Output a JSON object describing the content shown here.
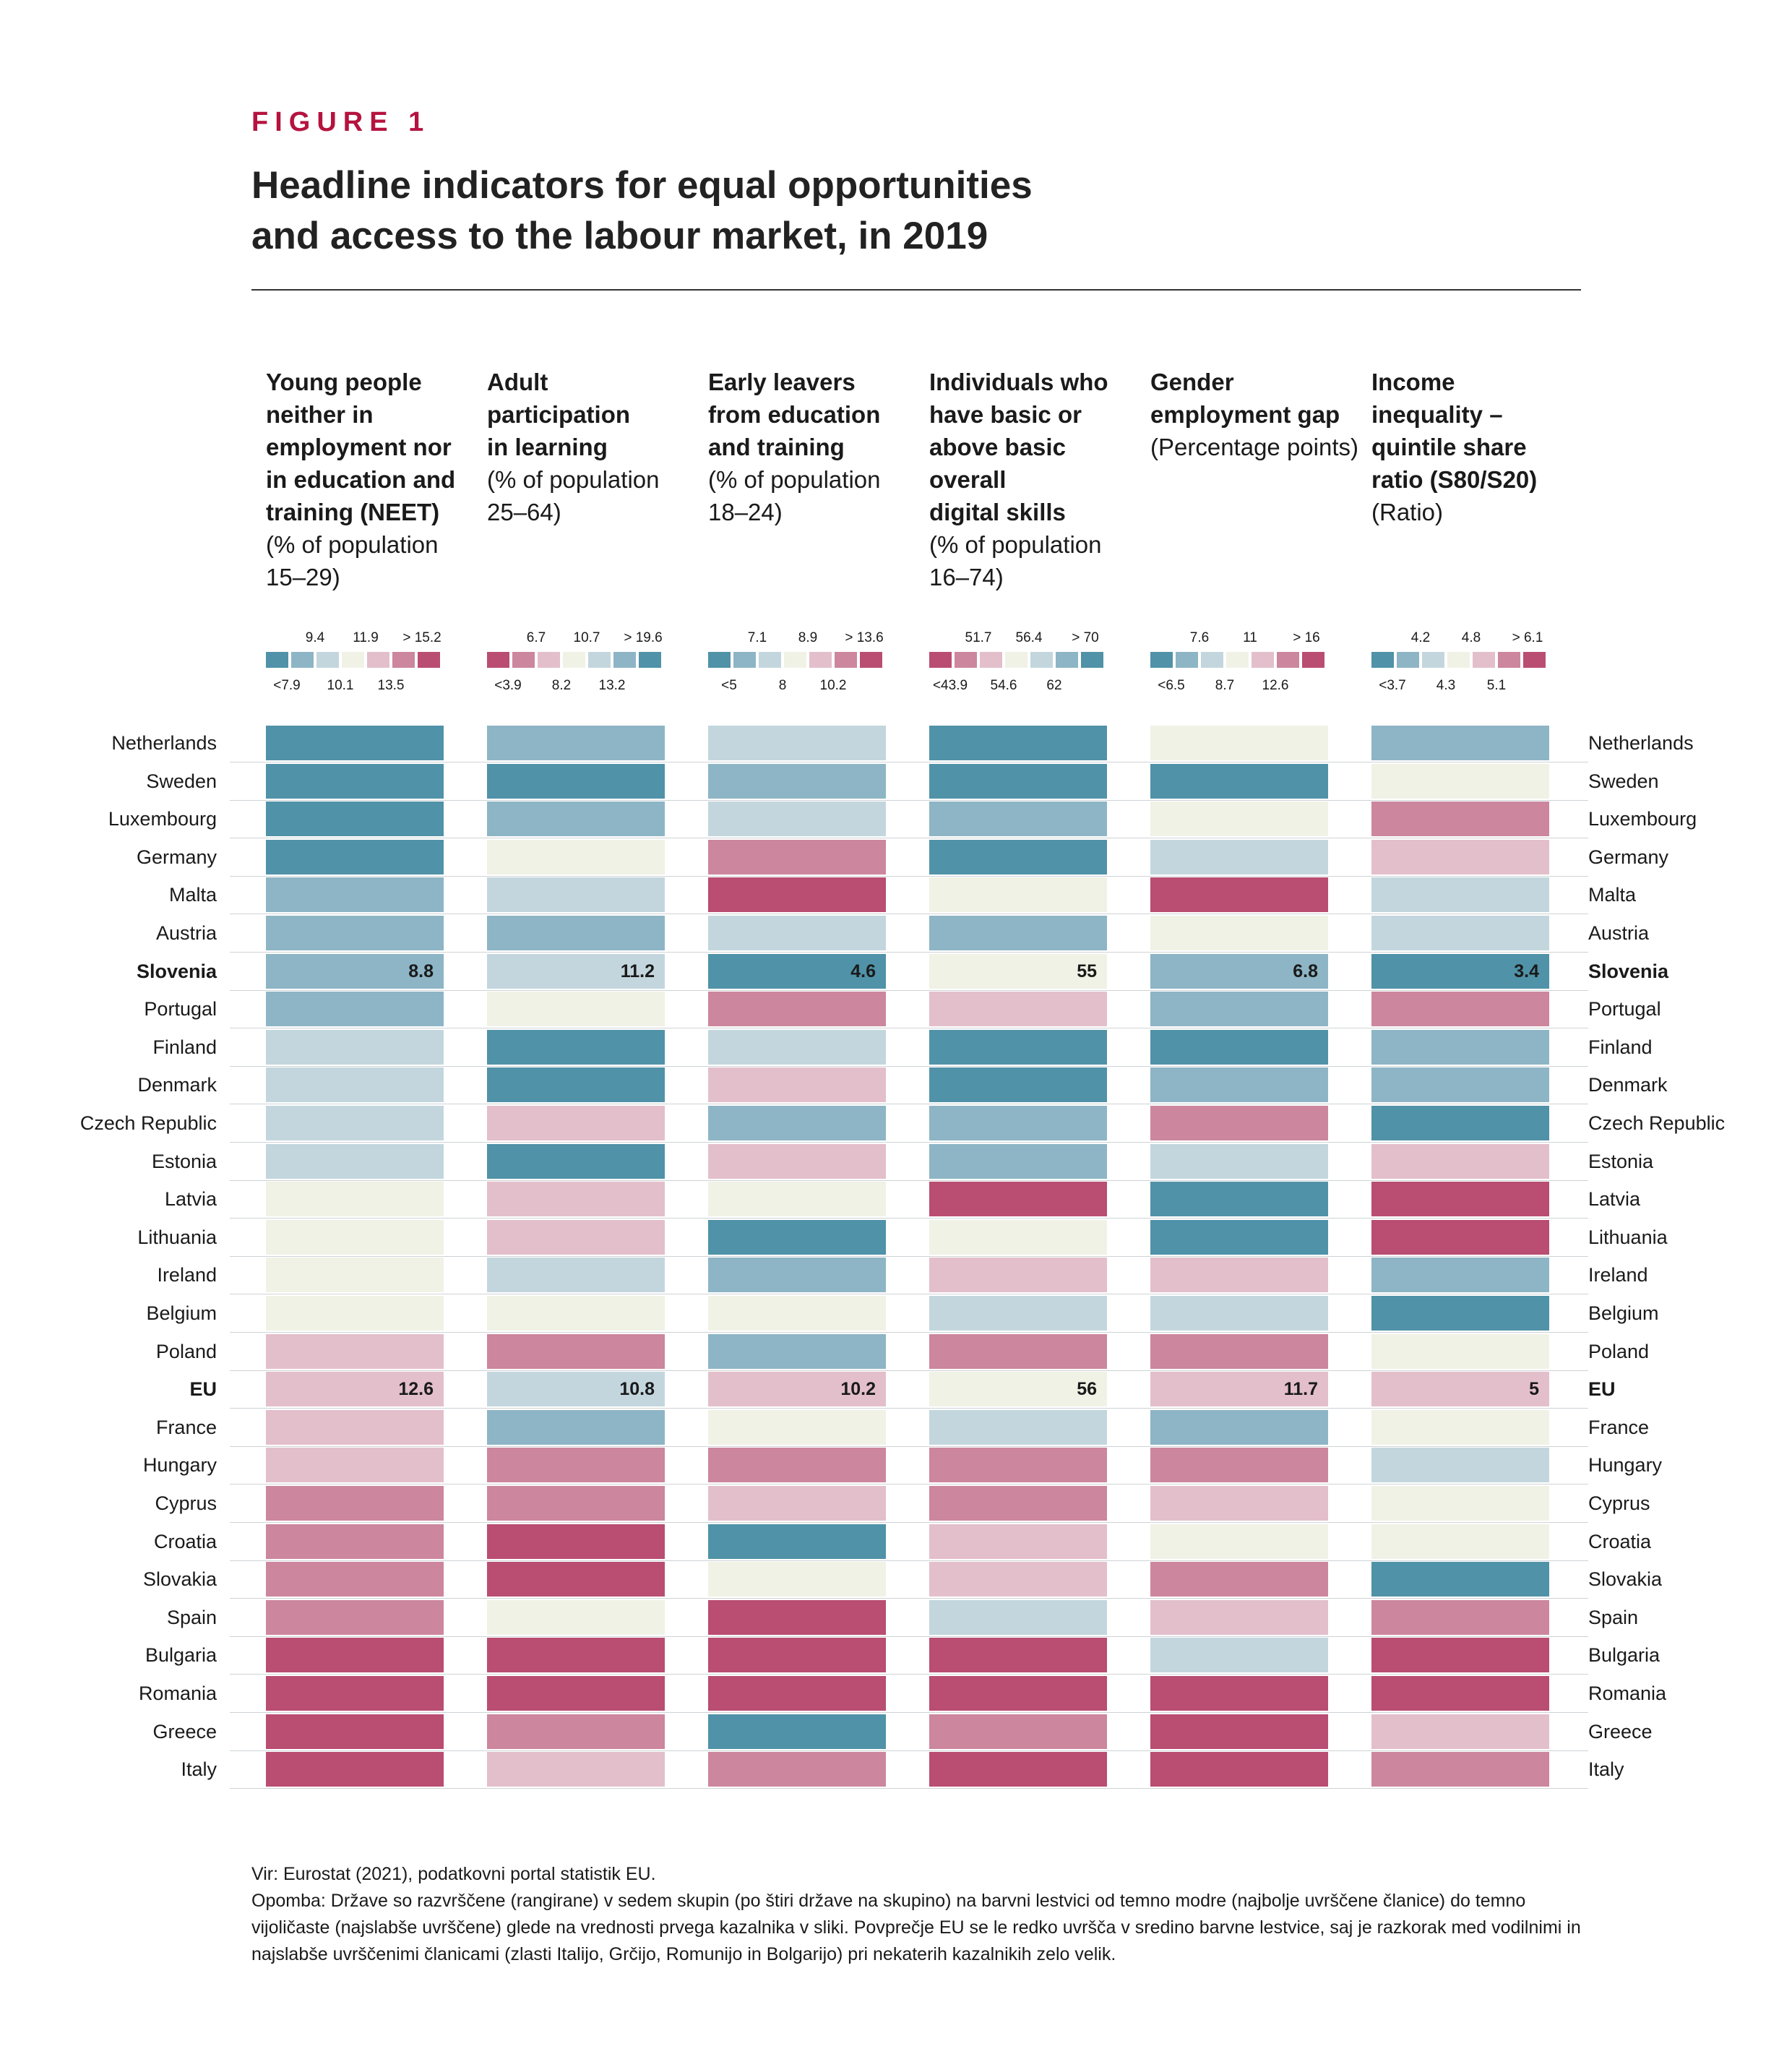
{
  "figure_label": "FIGURE 1",
  "title_line1": "Headline indicators for equal opportunities",
  "title_line2": "and access to the labour market, in 2019",
  "colors": {
    "scale": [
      "#5092a8",
      "#8db5c5",
      "#c3d6de",
      "#f0f2e6",
      "#e3bfcb",
      "#cc869d",
      "#b94d72"
    ]
  },
  "chart_data": {
    "type": "heatmap",
    "countries": [
      "Netherlands",
      "Sweden",
      "Luxembourg",
      "Germany",
      "Malta",
      "Austria",
      "Slovenia",
      "Portugal",
      "Finland",
      "Denmark",
      "Czech Republic",
      "Estonia",
      "Latvia",
      "Lithuania",
      "Ireland",
      "Belgium",
      "Poland",
      "EU",
      "France",
      "Hungary",
      "Cyprus",
      "Croatia",
      "Slovakia",
      "Spain",
      "Bulgaria",
      "Romania",
      "Greece",
      "Italy"
    ],
    "bold_rows": [
      "Slovenia",
      "EU"
    ],
    "indicators": [
      {
        "title": "Young people neither in employment nor in education and training (NEET)",
        "title_lines": [
          "Young people",
          "neither in",
          "employment nor",
          "in education and",
          "training (NEET)"
        ],
        "subtitle_lines": [
          "(% of population",
          "15–29)"
        ],
        "legend_top": [
          "9.4",
          "11.9",
          "> 15.2"
        ],
        "legend_bottom": [
          "<7.9",
          "10.1",
          "13.5"
        ],
        "legend_direction": "blue-to-red",
        "levels": [
          0,
          0,
          0,
          0,
          1,
          1,
          1,
          1,
          2,
          2,
          2,
          2,
          3,
          3,
          3,
          3,
          4,
          4,
          4,
          4,
          5,
          5,
          5,
          5,
          6,
          6,
          6,
          6
        ],
        "labels": {
          "Slovenia": "8.8",
          "EU": "12.6"
        }
      },
      {
        "title": "Adult participation in learning",
        "title_lines": [
          "Adult participation",
          "in learning"
        ],
        "subtitle_lines": [
          "(% of population",
          "25–64)"
        ],
        "legend_top": [
          "6.7",
          "10.7",
          "> 19.6"
        ],
        "legend_bottom": [
          "<3.9",
          "8.2",
          "13.2"
        ],
        "legend_direction": "red-to-blue",
        "levels": [
          1,
          0,
          1,
          3,
          2,
          1,
          2,
          3,
          0,
          0,
          4,
          0,
          4,
          4,
          2,
          3,
          5,
          2,
          1,
          5,
          5,
          6,
          6,
          3,
          6,
          6,
          5,
          4
        ],
        "labels": {
          "Slovenia": "11.2",
          "EU": "10.8"
        }
      },
      {
        "title": "Early leavers from education and training",
        "title_lines": [
          "Early leavers",
          "from education",
          "and training"
        ],
        "subtitle_lines": [
          "(% of population",
          "18–24)"
        ],
        "legend_top": [
          "7.1",
          "8.9",
          "> 13.6"
        ],
        "legend_bottom": [
          "<5",
          "8",
          "10.2"
        ],
        "legend_direction": "blue-to-red",
        "levels": [
          2,
          1,
          2,
          5,
          6,
          2,
          0,
          5,
          2,
          4,
          1,
          4,
          3,
          0,
          1,
          3,
          1,
          4,
          3,
          5,
          4,
          0,
          3,
          6,
          6,
          6,
          0,
          5
        ],
        "labels": {
          "Slovenia": "4.6",
          "EU": "10.2"
        }
      },
      {
        "title": "Individuals who have basic or above basic overall digital skills",
        "title_lines": [
          "Individuals who",
          "have basic or",
          "above basic overall",
          "digital skills"
        ],
        "subtitle_lines": [
          "(% of population",
          "16–74)"
        ],
        "legend_top": [
          "51.7",
          "56.4",
          "> 70"
        ],
        "legend_bottom": [
          "<43.9",
          "54.6",
          "62"
        ],
        "legend_direction": "red-to-blue",
        "levels": [
          0,
          0,
          1,
          0,
          3,
          1,
          3,
          4,
          0,
          0,
          1,
          1,
          6,
          3,
          4,
          2,
          5,
          3,
          2,
          5,
          5,
          4,
          4,
          2,
          6,
          6,
          5,
          6
        ],
        "labels": {
          "Slovenia": "55",
          "EU": "56"
        }
      },
      {
        "title": "Gender employment gap",
        "title_lines": [
          "Gender",
          "employment gap"
        ],
        "subtitle_lines": [
          "(Percentage points)"
        ],
        "legend_top": [
          "7.6",
          "11",
          "> 16"
        ],
        "legend_bottom": [
          "<6.5",
          "8.7",
          "12.6"
        ],
        "legend_direction": "blue-to-red",
        "levels": [
          3,
          0,
          3,
          2,
          6,
          3,
          1,
          1,
          0,
          1,
          5,
          2,
          0,
          0,
          4,
          2,
          5,
          4,
          1,
          5,
          4,
          3,
          5,
          4,
          2,
          6,
          6,
          6
        ],
        "labels": {
          "Slovenia": "6.8",
          "EU": "11.7"
        }
      },
      {
        "title": "Income inequality – quintile share ratio (S80/S20)",
        "title_lines": [
          "Income",
          "inequality –",
          "quintile share",
          "ratio (S80/S20)"
        ],
        "subtitle_lines": [
          "(Ratio)"
        ],
        "legend_top": [
          "4.2",
          "4.8",
          "> 6.1"
        ],
        "legend_bottom": [
          "<3.7",
          "4.3",
          "5.1"
        ],
        "legend_direction": "blue-to-red",
        "levels": [
          1,
          3,
          5,
          4,
          2,
          2,
          0,
          5,
          1,
          1,
          0,
          4,
          6,
          6,
          1,
          0,
          3,
          4,
          3,
          2,
          3,
          3,
          0,
          5,
          6,
          6,
          4,
          5
        ],
        "labels": {
          "Slovenia": "3.4",
          "EU": "5"
        }
      }
    ]
  },
  "footnote_source": "Vir: Eurostat (2021), podatkovni portal statistik EU.",
  "footnote_note": "Opomba: Države so razvrščene (rangirane) v sedem skupin (po štiri države na skupino) na barvni lestvici od temno modre (najbolje uvrščene članice) do temno vijoličaste (najslabše uvrščene) glede na vrednosti prvega kazalnika v sliki. Povprečje EU se le redko uvršča v sredino barvne lestvice, saj je razkorak med vodilnimi in najslabše uvrščenimi članicami (zlasti Italijo, Grčijo, Romunijo in Bolgarijo) pri nekaterih kazalnikih zelo velik."
}
